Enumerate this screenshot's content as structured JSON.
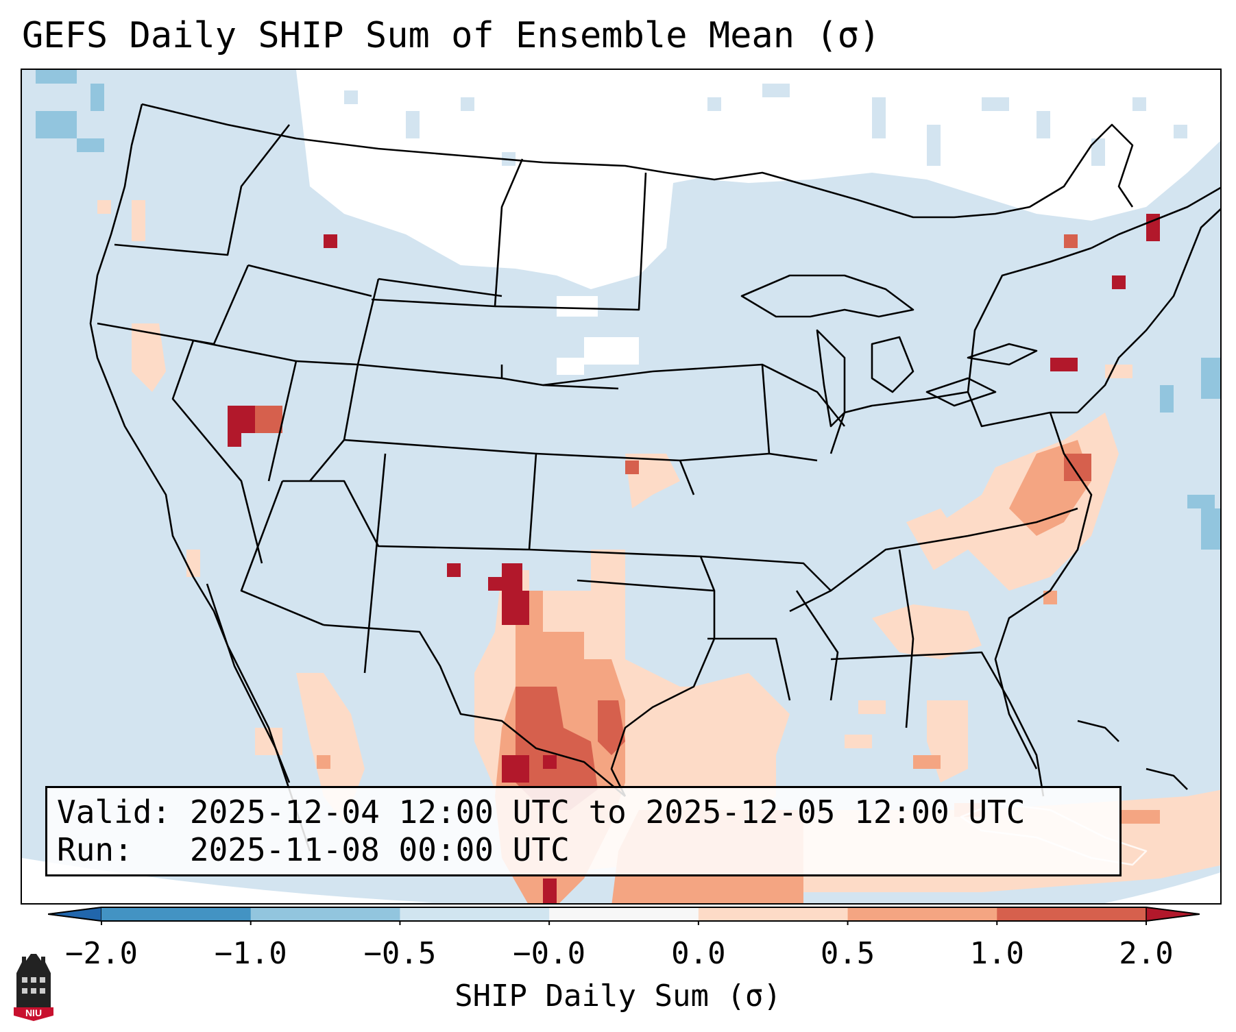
{
  "title": "GEFS Daily SHIP Sum of Ensemble Mean (σ)",
  "info": {
    "valid_label": "Valid:",
    "valid_value": "2025-12-04 12:00 UTC to 2025-12-05 12:00 UTC",
    "run_label": "Run:",
    "run_value": "2025-11-08 00:00 UTC"
  },
  "colorbar": {
    "label": "SHIP Daily Sum (σ)",
    "ticks": [
      "−2.0",
      "−1.0",
      "−0.5",
      "−0.0",
      "0.0",
      "0.5",
      "1.0",
      "2.0"
    ],
    "bins": [
      {
        "range": "< -2.0",
        "color": "#2166ac"
      },
      {
        "range": "-2.0 to -1.0",
        "color": "#4393c3"
      },
      {
        "range": "-1.0 to -0.5",
        "color": "#92c5de"
      },
      {
        "range": "-0.5 to -0.0",
        "color": "#d1e5f0"
      },
      {
        "range": "-0.0 to 0.0",
        "color": "#f7f7f7"
      },
      {
        "range": "0.0 to 0.5",
        "color": "#fddbc7"
      },
      {
        "range": "0.5 to 1.0",
        "color": "#f4a582"
      },
      {
        "range": "1.0 to 2.0",
        "color": "#d6604d"
      },
      {
        "range": "> 2.0",
        "color": "#b2182b"
      }
    ],
    "extend": "both"
  },
  "logo": {
    "text": "NIU",
    "icon": "university-tower-logo"
  }
}
